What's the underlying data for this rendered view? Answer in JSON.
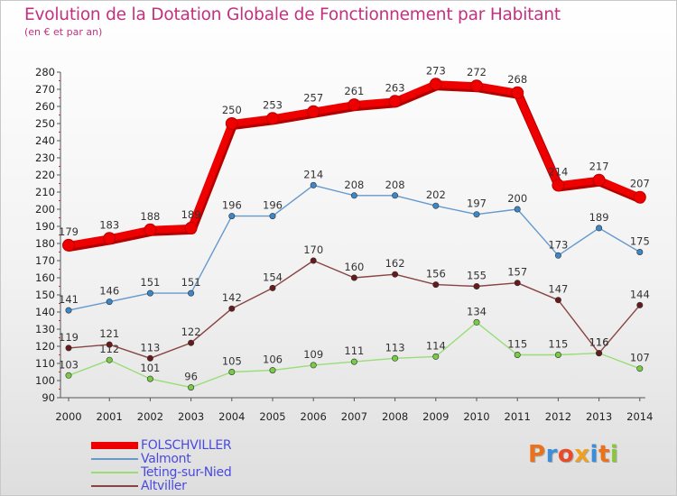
{
  "header": {
    "title": "Evolution de la Dotation Globale de Fonctionnement par Habitant",
    "subtitle": "(en € et par an)"
  },
  "logo": {
    "text": "Proxiti"
  },
  "colors": {
    "title": "#c2317e",
    "axis": "#555555",
    "legend_text": "#4a4ae0"
  },
  "chart_data": {
    "type": "line",
    "title": "Evolution de la Dotation Globale de Fonctionnement par Habitant",
    "subtitle": "(en € et par an)",
    "xlabel": "",
    "ylabel": "",
    "x": [
      "2000",
      "2001",
      "2002",
      "2003",
      "2004",
      "2005",
      "2006",
      "2007",
      "2008",
      "2009",
      "2010",
      "2011",
      "2012",
      "2013",
      "2014"
    ],
    "ylim": [
      90,
      280
    ],
    "yticks": [
      90,
      100,
      110,
      120,
      130,
      140,
      150,
      160,
      170,
      180,
      190,
      200,
      210,
      220,
      230,
      240,
      250,
      260,
      270,
      280
    ],
    "grid": false,
    "legend_position": "bottom-left",
    "series": [
      {
        "name": "FOLSCHVILLER",
        "color": "#ee0000",
        "marker": "#ee0000",
        "thick": true,
        "values": [
          179,
          183,
          188,
          189,
          250,
          253,
          257,
          261,
          263,
          273,
          272,
          268,
          214,
          217,
          207
        ]
      },
      {
        "name": "Valmont",
        "color": "#6699cc",
        "marker": "#3d87c8",
        "thick": false,
        "values": [
          141,
          146,
          151,
          151,
          196,
          196,
          214,
          208,
          208,
          202,
          197,
          200,
          173,
          189,
          175
        ]
      },
      {
        "name": "Teting-sur-Nied",
        "color": "#99dd77",
        "marker": "#77cc44",
        "thick": false,
        "values": [
          103,
          112,
          101,
          96,
          105,
          106,
          109,
          111,
          113,
          114,
          134,
          115,
          115,
          116,
          107
        ]
      },
      {
        "name": "Altviller",
        "color": "#884444",
        "marker": "#661a1a",
        "thick": false,
        "values": [
          119,
          121,
          113,
          122,
          142,
          154,
          170,
          160,
          162,
          156,
          155,
          157,
          147,
          116,
          144
        ]
      }
    ]
  }
}
